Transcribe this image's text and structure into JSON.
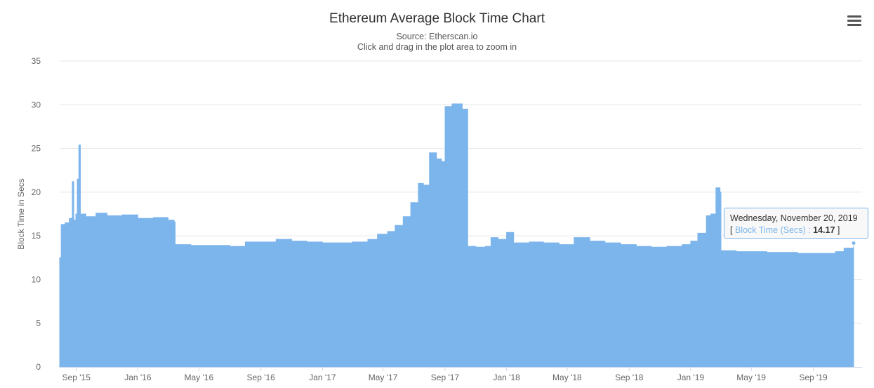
{
  "header": {
    "title": "Ethereum Average Block Time Chart",
    "subtitle_source": "Source: Etherscan.io",
    "subtitle_hint": "Click and drag in the plot area to zoom in",
    "menu_icon": "hamburger-menu-icon"
  },
  "tooltip": {
    "date": "Wednesday, November 20, 2019",
    "open_bracket": "[",
    "series_label": "Block Time (Secs)",
    "separator": ":",
    "value": "14.17",
    "close_bracket": "]"
  },
  "chart_data": {
    "type": "area",
    "title": "Ethereum Average Block Time Chart",
    "subtitle": "Source: Etherscan.io",
    "xlabel": "",
    "ylabel": "Block Time in Secs",
    "ylim": [
      0,
      35
    ],
    "yticks": [
      0,
      5,
      10,
      15,
      20,
      25,
      30,
      35
    ],
    "xlim": [
      "2015-07-30",
      "2019-11-20"
    ],
    "xticks": [
      {
        "label": "Sep '15",
        "date": "2015-09-01"
      },
      {
        "label": "Jan '16",
        "date": "2016-01-01"
      },
      {
        "label": "May '16",
        "date": "2016-05-01"
      },
      {
        "label": "Sep '16",
        "date": "2016-09-01"
      },
      {
        "label": "Jan '17",
        "date": "2017-01-01"
      },
      {
        "label": "May '17",
        "date": "2017-05-01"
      },
      {
        "label": "Sep '17",
        "date": "2017-09-01"
      },
      {
        "label": "Jan '18",
        "date": "2018-01-01"
      },
      {
        "label": "May '18",
        "date": "2018-05-01"
      },
      {
        "label": "Sep '18",
        "date": "2018-09-01"
      },
      {
        "label": "Jan '19",
        "date": "2019-01-01"
      },
      {
        "label": "May '19",
        "date": "2019-05-01"
      },
      {
        "label": "Sep '19",
        "date": "2019-09-01"
      }
    ],
    "grid": true,
    "legend": "none",
    "series": [
      {
        "name": "Block Time (Secs)",
        "color": "#7cb5ec",
        "points": [
          [
            "2015-07-30",
            12.5
          ],
          [
            "2015-08-02",
            16.3
          ],
          [
            "2015-08-10",
            16.5
          ],
          [
            "2015-08-18",
            17.0
          ],
          [
            "2015-08-24",
            21.2
          ],
          [
            "2015-08-27",
            16.8
          ],
          [
            "2015-08-31",
            17.5
          ],
          [
            "2015-09-03",
            21.5
          ],
          [
            "2015-09-06",
            25.4
          ],
          [
            "2015-09-09",
            17.5
          ],
          [
            "2015-09-20",
            17.2
          ],
          [
            "2015-10-10",
            17.6
          ],
          [
            "2015-11-01",
            17.3
          ],
          [
            "2015-12-01",
            17.4
          ],
          [
            "2016-01-01",
            17.0
          ],
          [
            "2016-02-01",
            17.1
          ],
          [
            "2016-03-01",
            16.8
          ],
          [
            "2016-03-13",
            16.6
          ],
          [
            "2016-03-15",
            14.0
          ],
          [
            "2016-04-15",
            13.9
          ],
          [
            "2016-06-01",
            13.9
          ],
          [
            "2016-07-01",
            13.8
          ],
          [
            "2016-08-01",
            14.3
          ],
          [
            "2016-09-01",
            14.3
          ],
          [
            "2016-10-01",
            14.6
          ],
          [
            "2016-11-01",
            14.4
          ],
          [
            "2016-12-01",
            14.3
          ],
          [
            "2017-01-01",
            14.2
          ],
          [
            "2017-02-01",
            14.2
          ],
          [
            "2017-03-01",
            14.3
          ],
          [
            "2017-04-01",
            14.6
          ],
          [
            "2017-04-20",
            15.2
          ],
          [
            "2017-05-10",
            15.5
          ],
          [
            "2017-05-25",
            16.2
          ],
          [
            "2017-06-10",
            17.2
          ],
          [
            "2017-06-25",
            18.8
          ],
          [
            "2017-07-10",
            21.0
          ],
          [
            "2017-07-20",
            20.8
          ],
          [
            "2017-08-01",
            24.5
          ],
          [
            "2017-08-15",
            23.8
          ],
          [
            "2017-08-25",
            23.5
          ],
          [
            "2017-09-01",
            29.8
          ],
          [
            "2017-09-15",
            30.1
          ],
          [
            "2017-10-05",
            29.5
          ],
          [
            "2017-10-16",
            13.8
          ],
          [
            "2017-11-01",
            13.7
          ],
          [
            "2017-11-20",
            13.8
          ],
          [
            "2017-12-01",
            14.8
          ],
          [
            "2017-12-15",
            14.6
          ],
          [
            "2018-01-01",
            15.4
          ],
          [
            "2018-01-15",
            14.2
          ],
          [
            "2018-02-15",
            14.3
          ],
          [
            "2018-03-15",
            14.2
          ],
          [
            "2018-04-15",
            14.0
          ],
          [
            "2018-05-15",
            14.8
          ],
          [
            "2018-06-01",
            14.8
          ],
          [
            "2018-06-15",
            14.4
          ],
          [
            "2018-07-15",
            14.2
          ],
          [
            "2018-08-15",
            14.0
          ],
          [
            "2018-09-15",
            13.8
          ],
          [
            "2018-10-15",
            13.7
          ],
          [
            "2018-11-15",
            13.8
          ],
          [
            "2018-12-15",
            14.0
          ],
          [
            "2019-01-01",
            14.4
          ],
          [
            "2019-01-15",
            15.3
          ],
          [
            "2019-02-01",
            17.3
          ],
          [
            "2019-02-10",
            17.5
          ],
          [
            "2019-02-20",
            20.5
          ],
          [
            "2019-02-28",
            20.0
          ],
          [
            "2019-03-02",
            13.3
          ],
          [
            "2019-04-01",
            13.2
          ],
          [
            "2019-06-01",
            13.1
          ],
          [
            "2019-08-01",
            13.0
          ],
          [
            "2019-09-15",
            13.0
          ],
          [
            "2019-10-15",
            13.2
          ],
          [
            "2019-11-01",
            13.6
          ],
          [
            "2019-11-20",
            14.17
          ]
        ]
      }
    ]
  }
}
